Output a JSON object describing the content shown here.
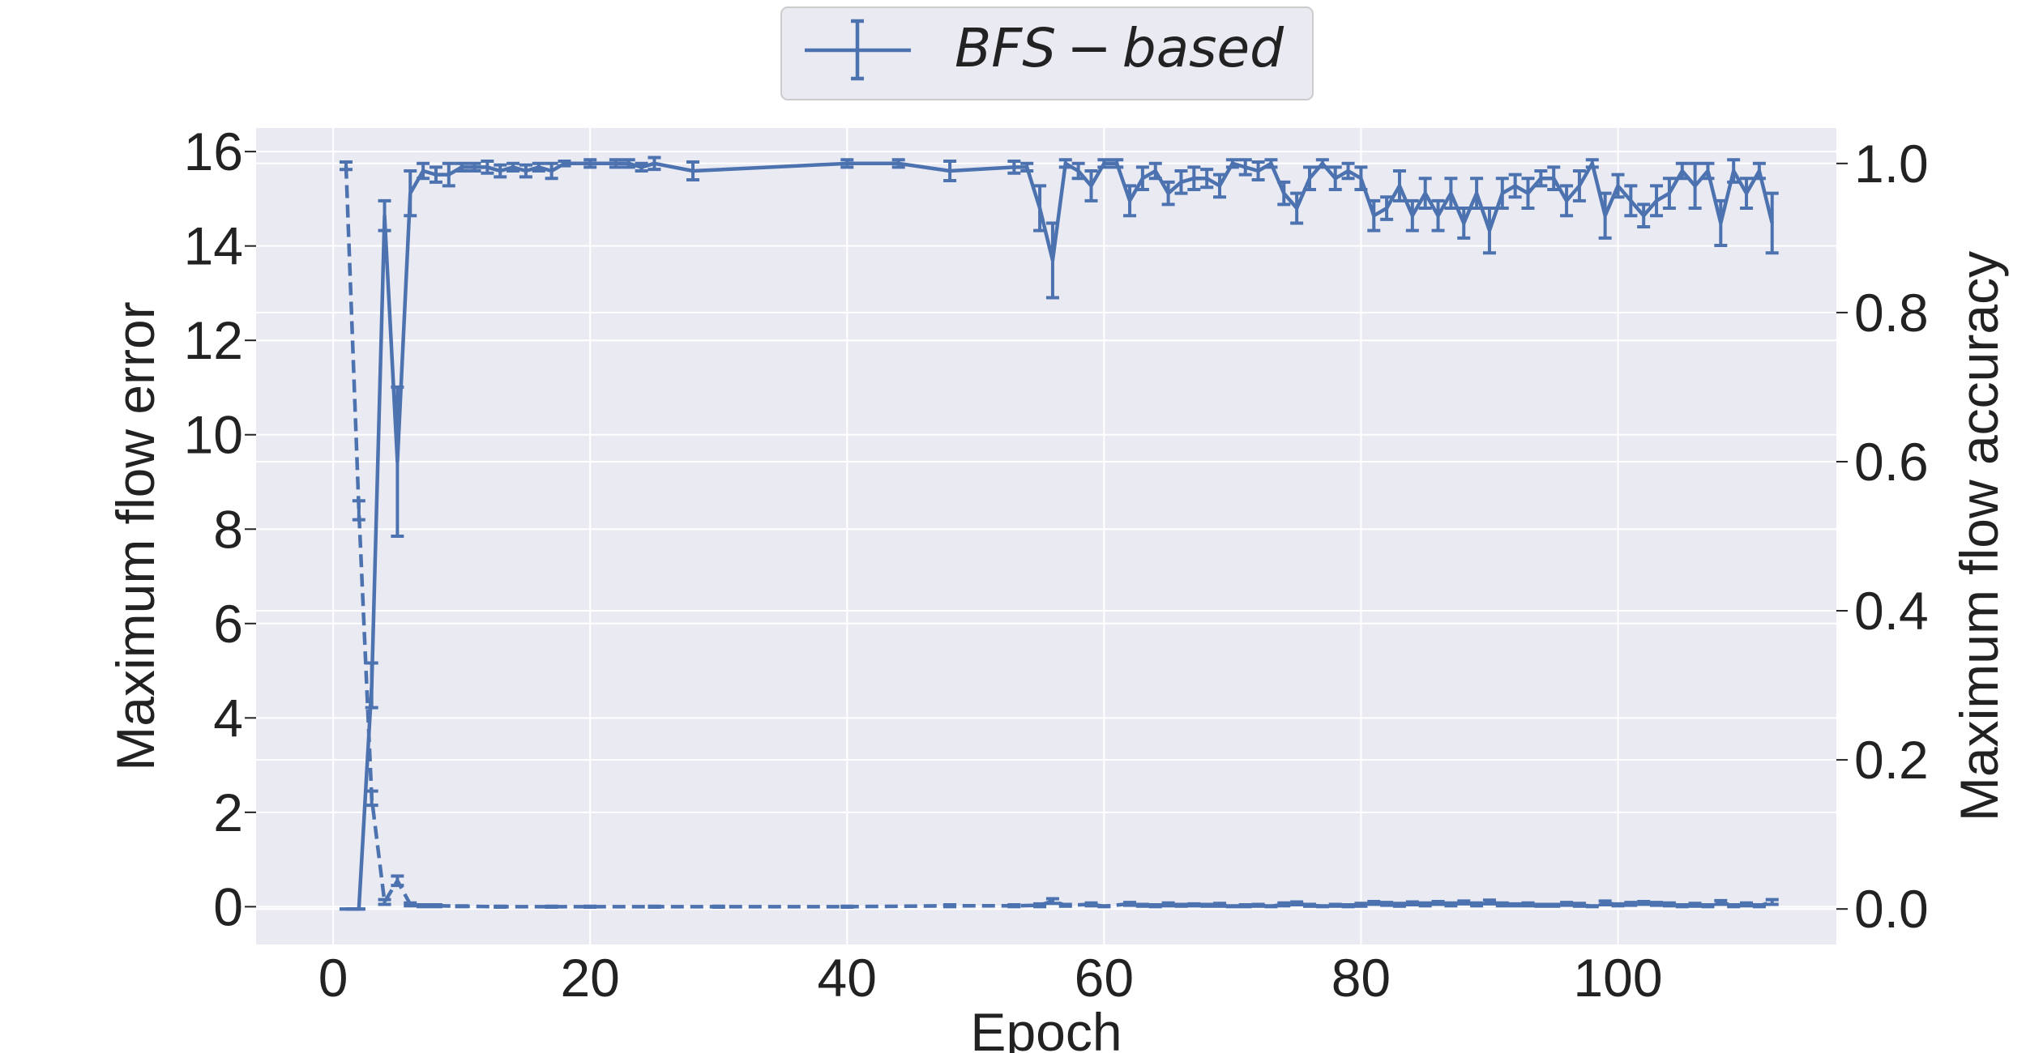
{
  "chart_data": {
    "type": "line",
    "xlabel": "Epoch",
    "ylabel_left": "Maximum flow error",
    "ylabel_right": "Maximum flow accuracy",
    "legend": {
      "label": "BFS − based",
      "placement": "top-center"
    },
    "xlim": [
      -6,
      117
    ],
    "ylim_left": [
      -0.8,
      16.5
    ],
    "ylim_right": [
      -0.0476,
      1.0476
    ],
    "xticks": [
      0,
      20,
      40,
      60,
      80,
      100
    ],
    "yticks_left": [
      0,
      2,
      4,
      6,
      8,
      10,
      12,
      14,
      16
    ],
    "yticks_right": [
      "0.0",
      "0.2",
      "0.4",
      "0.6",
      "0.8",
      "1.0"
    ],
    "yticks_right_values": [
      0,
      0.2,
      0.4,
      0.6,
      0.8,
      1.0
    ],
    "grid": true,
    "series_style": {
      "color": "#4c72b0"
    },
    "accuracy": {
      "axis": "right",
      "linestyle": "solid",
      "points": [
        [
          1,
          0,
          0
        ],
        [
          2,
          0,
          0
        ],
        [
          3,
          0.3,
          0.03
        ],
        [
          4,
          0.93,
          0.02
        ],
        [
          5,
          0.6,
          0.1
        ],
        [
          6,
          0.96,
          0.03
        ],
        [
          7,
          0.99,
          0.01
        ],
        [
          8,
          0.985,
          0.01
        ],
        [
          9,
          0.985,
          0.015
        ],
        [
          10,
          0.995,
          0.005
        ],
        [
          11,
          0.995,
          0.005
        ],
        [
          12,
          0.995,
          0.008
        ],
        [
          13,
          0.99,
          0.008
        ],
        [
          14,
          0.995,
          0.005
        ],
        [
          15,
          0.99,
          0.008
        ],
        [
          16,
          0.995,
          0.005
        ],
        [
          17,
          0.99,
          0.01
        ],
        [
          18,
          1.0,
          0.003
        ],
        [
          20,
          1.0,
          0.005
        ],
        [
          22,
          1.0,
          0.005
        ],
        [
          23,
          1.0,
          0.005
        ],
        [
          24,
          0.995,
          0.005
        ],
        [
          25,
          1.0,
          0.008
        ],
        [
          28,
          0.99,
          0.012
        ],
        [
          40,
          1.0,
          0.005
        ],
        [
          44,
          1.0,
          0.005
        ],
        [
          48,
          0.99,
          0.013
        ],
        [
          53,
          0.995,
          0.008
        ],
        [
          54,
          0.995,
          0.005
        ],
        [
          55,
          0.94,
          0.03
        ],
        [
          56,
          0.87,
          0.05
        ],
        [
          57,
          1.0,
          0.005
        ],
        [
          58,
          0.99,
          0.01
        ],
        [
          59,
          0.97,
          0.02
        ],
        [
          60,
          1.0,
          0.005
        ],
        [
          61,
          1.0,
          0.005
        ],
        [
          62,
          0.95,
          0.02
        ],
        [
          63,
          0.98,
          0.015
        ],
        [
          64,
          0.99,
          0.01
        ],
        [
          65,
          0.96,
          0.015
        ],
        [
          66,
          0.975,
          0.015
        ],
        [
          67,
          0.98,
          0.015
        ],
        [
          68,
          0.98,
          0.012
        ],
        [
          69,
          0.97,
          0.015
        ],
        [
          70,
          1.0,
          0.005
        ],
        [
          71,
          0.995,
          0.01
        ],
        [
          72,
          0.99,
          0.012
        ],
        [
          73,
          1.0,
          0.005
        ],
        [
          74,
          0.96,
          0.015
        ],
        [
          75,
          0.94,
          0.02
        ],
        [
          76,
          0.98,
          0.015
        ],
        [
          77,
          1.0,
          0.005
        ],
        [
          78,
          0.98,
          0.015
        ],
        [
          79,
          0.99,
          0.01
        ],
        [
          80,
          0.98,
          0.015
        ],
        [
          81,
          0.93,
          0.02
        ],
        [
          82,
          0.94,
          0.015
        ],
        [
          83,
          0.97,
          0.02
        ],
        [
          84,
          0.93,
          0.02
        ],
        [
          85,
          0.96,
          0.02
        ],
        [
          86,
          0.93,
          0.02
        ],
        [
          87,
          0.96,
          0.02
        ],
        [
          88,
          0.92,
          0.02
        ],
        [
          89,
          0.96,
          0.02
        ],
        [
          90,
          0.91,
          0.03
        ],
        [
          91,
          0.96,
          0.02
        ],
        [
          92,
          0.97,
          0.015
        ],
        [
          93,
          0.96,
          0.02
        ],
        [
          94,
          0.98,
          0.01
        ],
        [
          95,
          0.98,
          0.015
        ],
        [
          96,
          0.95,
          0.02
        ],
        [
          97,
          0.97,
          0.02
        ],
        [
          98,
          1.0,
          0.005
        ],
        [
          99,
          0.93,
          0.03
        ],
        [
          100,
          0.97,
          0.015
        ],
        [
          101,
          0.95,
          0.02
        ],
        [
          102,
          0.93,
          0.015
        ],
        [
          103,
          0.95,
          0.02
        ],
        [
          104,
          0.96,
          0.02
        ],
        [
          105,
          0.99,
          0.01
        ],
        [
          106,
          0.97,
          0.03
        ],
        [
          107,
          0.99,
          0.01
        ],
        [
          108,
          0.92,
          0.03
        ],
        [
          109,
          0.99,
          0.015
        ],
        [
          110,
          0.96,
          0.02
        ],
        [
          111,
          0.99,
          0.01
        ],
        [
          112,
          0.92,
          0.04
        ]
      ]
    },
    "error": {
      "axis": "left",
      "linestyle": "dashed",
      "points": [
        [
          1,
          15.7,
          0.08
        ],
        [
          2,
          8.4,
          0.2
        ],
        [
          3,
          2.3,
          0.15
        ],
        [
          4,
          0.1,
          0.05
        ],
        [
          5,
          0.55,
          0.1
        ],
        [
          6,
          0.05,
          0.03
        ],
        [
          7,
          0.02,
          0.02
        ],
        [
          8,
          0.02,
          0.02
        ],
        [
          10,
          0.01,
          0.01
        ],
        [
          13,
          0.0,
          0.01
        ],
        [
          17,
          0.0,
          0.01
        ],
        [
          20,
          0.0,
          0.01
        ],
        [
          25,
          0.0,
          0.01
        ],
        [
          30,
          0.0,
          0.01
        ],
        [
          40,
          0.0,
          0.01
        ],
        [
          48,
          0.02,
          0.02
        ],
        [
          53,
          0.02,
          0.02
        ],
        [
          55,
          0.03,
          0.03
        ],
        [
          56,
          0.12,
          0.05
        ],
        [
          57,
          0.03,
          0.02
        ],
        [
          59,
          0.05,
          0.03
        ],
        [
          60,
          0.01,
          0.01
        ],
        [
          62,
          0.06,
          0.03
        ],
        [
          63,
          0.03,
          0.02
        ],
        [
          64,
          0.02,
          0.02
        ],
        [
          65,
          0.05,
          0.03
        ],
        [
          66,
          0.03,
          0.02
        ],
        [
          67,
          0.04,
          0.02
        ],
        [
          68,
          0.03,
          0.02
        ],
        [
          69,
          0.04,
          0.03
        ],
        [
          70,
          0.01,
          0.01
        ],
        [
          71,
          0.02,
          0.02
        ],
        [
          72,
          0.03,
          0.02
        ],
        [
          73,
          0.01,
          0.01
        ],
        [
          74,
          0.05,
          0.03
        ],
        [
          75,
          0.07,
          0.03
        ],
        [
          76,
          0.03,
          0.02
        ],
        [
          77,
          0.01,
          0.01
        ],
        [
          78,
          0.03,
          0.02
        ],
        [
          79,
          0.02,
          0.02
        ],
        [
          80,
          0.04,
          0.03
        ],
        [
          81,
          0.08,
          0.03
        ],
        [
          82,
          0.06,
          0.03
        ],
        [
          83,
          0.04,
          0.03
        ],
        [
          84,
          0.07,
          0.03
        ],
        [
          85,
          0.05,
          0.03
        ],
        [
          86,
          0.08,
          0.03
        ],
        [
          87,
          0.05,
          0.03
        ],
        [
          88,
          0.09,
          0.03
        ],
        [
          89,
          0.05,
          0.03
        ],
        [
          90,
          0.1,
          0.04
        ],
        [
          91,
          0.05,
          0.03
        ],
        [
          92,
          0.04,
          0.02
        ],
        [
          93,
          0.05,
          0.03
        ],
        [
          94,
          0.03,
          0.02
        ],
        [
          95,
          0.03,
          0.02
        ],
        [
          96,
          0.06,
          0.03
        ],
        [
          97,
          0.04,
          0.03
        ],
        [
          98,
          0.01,
          0.01
        ],
        [
          99,
          0.08,
          0.04
        ],
        [
          100,
          0.04,
          0.02
        ],
        [
          101,
          0.06,
          0.03
        ],
        [
          102,
          0.08,
          0.03
        ],
        [
          103,
          0.06,
          0.03
        ],
        [
          104,
          0.05,
          0.03
        ],
        [
          105,
          0.02,
          0.02
        ],
        [
          106,
          0.04,
          0.03
        ],
        [
          107,
          0.02,
          0.02
        ],
        [
          108,
          0.09,
          0.04
        ],
        [
          109,
          0.02,
          0.02
        ],
        [
          110,
          0.05,
          0.03
        ],
        [
          111,
          0.02,
          0.02
        ],
        [
          112,
          0.1,
          0.05
        ]
      ]
    }
  }
}
